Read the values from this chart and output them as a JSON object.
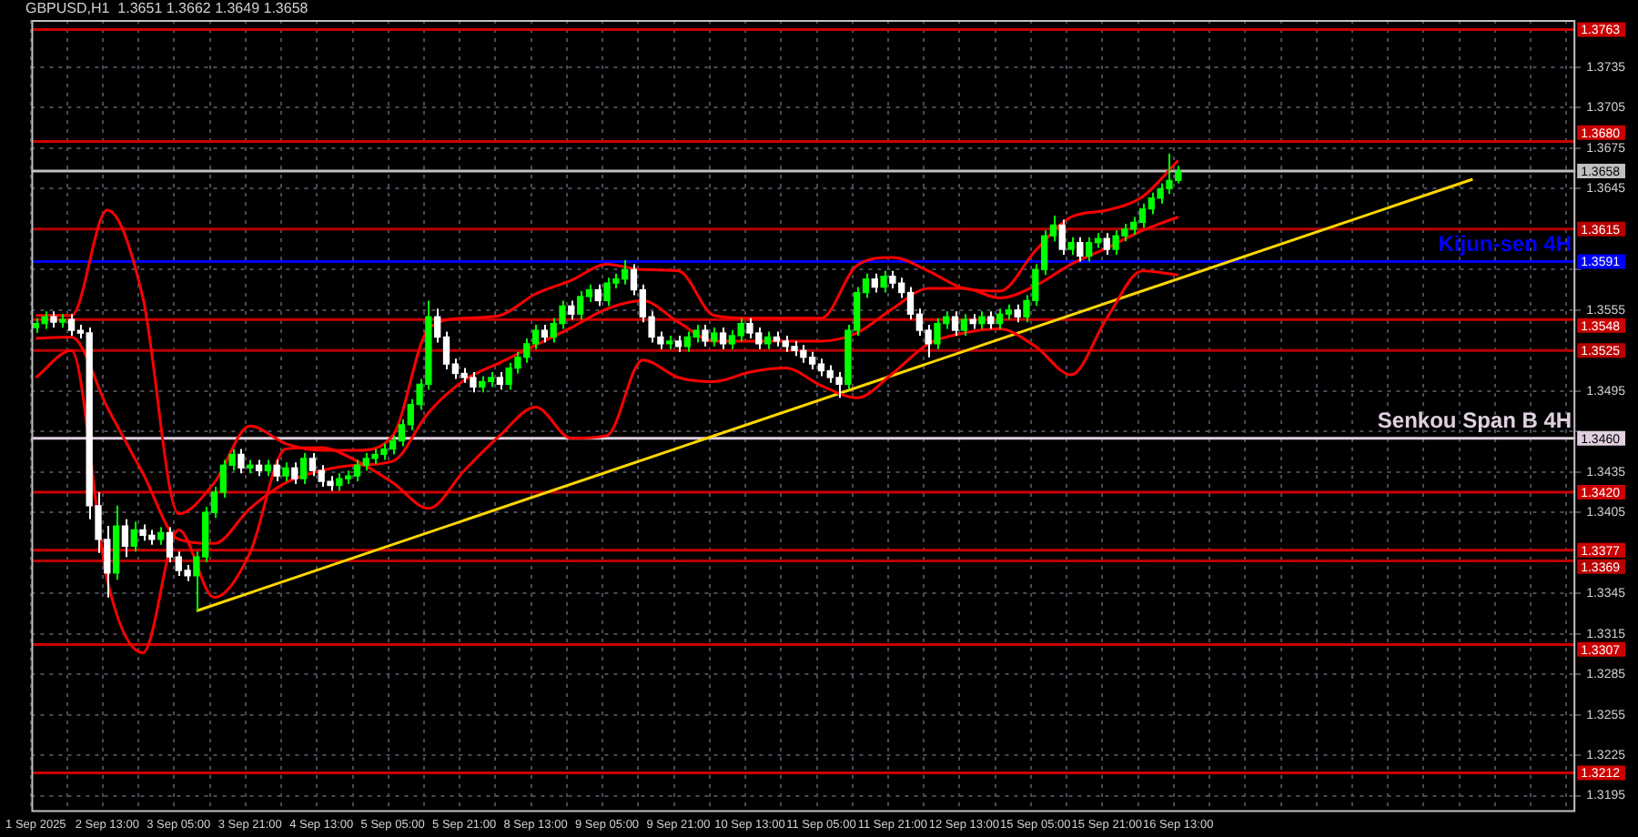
{
  "chart_data": {
    "type": "candlestick",
    "title": "GBPUSD,H1  1.3651 1.3662 1.3649 1.3658",
    "categories": [
      "1 Sep 2025",
      null,
      null,
      null,
      null,
      null,
      null,
      null,
      "2 Sep 13:00",
      null,
      null,
      null,
      null,
      null,
      null,
      null,
      "3 Sep 05:00",
      null,
      null,
      null,
      null,
      null,
      null,
      null,
      "3 Sep 21:00",
      null,
      null,
      null,
      null,
      null,
      null,
      null,
      "4 Sep 13:00",
      null,
      null,
      null,
      null,
      null,
      null,
      null,
      "5 Sep 05:00",
      null,
      null,
      null,
      null,
      null,
      null,
      null,
      "5 Sep 21:00",
      null,
      null,
      null,
      null,
      null,
      null,
      null,
      "8 Sep 13:00",
      null,
      null,
      null,
      null,
      null,
      null,
      null,
      "9 Sep 05:00",
      null,
      null,
      null,
      null,
      null,
      null,
      null,
      "9 Sep 21:00",
      null,
      null,
      null,
      null,
      null,
      null,
      null,
      "10 Sep 13:00",
      null,
      null,
      null,
      null,
      null,
      null,
      null,
      "11 Sep 05:00",
      null,
      null,
      null,
      null,
      null,
      null,
      null,
      "11 Sep 21:00",
      null,
      null,
      null,
      null,
      null,
      null,
      null,
      "12 Sep 13:00",
      null,
      null,
      null,
      null,
      null,
      null,
      null,
      "15 Sep 05:00",
      null,
      null,
      null,
      null,
      null,
      null,
      null,
      "15 Sep 21:00",
      null,
      null,
      null,
      null,
      null,
      null,
      null,
      "16 Sep 13:00",
      null,
      null,
      null,
      null,
      null,
      null,
      null,
      null,
      null,
      null,
      null,
      null,
      null,
      null,
      null,
      null,
      null,
      null,
      null,
      null,
      null,
      null,
      null,
      null,
      null,
      null,
      null,
      null,
      null,
      null,
      null,
      null,
      null,
      null,
      null,
      null,
      null,
      null,
      null,
      null,
      null,
      null,
      null,
      null
    ],
    "series": [
      {
        "type": "line",
        "color": "#ff0000",
        "values": [
          1.3551,
          null,
          null,
          null,
          1.3551,
          null,
          null,
          null,
          1.3629,
          null,
          null,
          null,
          1.3564,
          null,
          null,
          null,
          1.3404,
          null,
          null,
          null,
          1.3427,
          null,
          null,
          null,
          1.3469,
          null,
          null,
          null,
          1.3456,
          null,
          null,
          null,
          1.3451,
          null,
          null,
          null,
          1.3451,
          null,
          null,
          null,
          1.3462,
          null,
          null,
          null,
          1.3541,
          null,
          null,
          null,
          1.3549,
          null,
          null,
          null,
          1.3551,
          null,
          null,
          null,
          1.3567,
          null,
          null,
          null,
          1.3577,
          null,
          null,
          null,
          1.3589,
          null,
          null,
          null,
          1.3585,
          null,
          null,
          null,
          1.3584,
          null,
          null,
          null,
          1.3551,
          null,
          null,
          null,
          1.3549,
          null,
          null,
          null,
          1.3549,
          null,
          null,
          null,
          1.3549,
          null,
          null,
          null,
          1.3588,
          null,
          null,
          null,
          1.3594,
          null,
          null,
          null,
          1.3584,
          null,
          null,
          null,
          1.3571,
          null,
          null,
          null,
          1.3569,
          null,
          null,
          null,
          1.3599,
          null,
          null,
          null,
          1.3624,
          null,
          null,
          null,
          1.3629,
          null,
          null,
          null,
          1.3639,
          null,
          null,
          null,
          1.3666,
          null,
          null,
          null,
          null,
          null,
          null,
          null,
          null,
          null,
          null,
          null,
          null,
          null,
          null,
          null,
          null,
          null,
          null,
          null,
          null,
          null,
          null,
          null,
          null,
          null,
          null,
          null,
          null,
          null,
          null,
          null,
          null,
          null,
          null,
          null,
          null,
          null,
          null,
          null,
          null,
          null,
          null,
          null,
          null
        ]
      },
      {
        "type": "line",
        "color": "#ff0000",
        "values": [
          1.3534,
          null,
          null,
          null,
          1.3535,
          null,
          null,
          null,
          1.3483,
          null,
          null,
          null,
          1.3434,
          null,
          null,
          null,
          1.3385,
          null,
          null,
          null,
          1.3382,
          null,
          null,
          null,
          1.3408,
          null,
          null,
          null,
          1.3427,
          null,
          null,
          null,
          1.3436,
          null,
          null,
          null,
          1.344,
          null,
          null,
          null,
          1.3443,
          null,
          null,
          null,
          1.3479,
          null,
          null,
          null,
          1.3503,
          null,
          null,
          null,
          1.3516,
          null,
          null,
          null,
          1.3529,
          null,
          null,
          null,
          1.3542,
          null,
          null,
          null,
          1.3556,
          null,
          null,
          null,
          1.3562,
          null,
          null,
          null,
          1.3546,
          null,
          null,
          null,
          1.3532,
          null,
          null,
          null,
          1.3532,
          null,
          null,
          null,
          1.3532,
          null,
          null,
          null,
          1.3532,
          null,
          null,
          null,
          1.3538,
          null,
          null,
          null,
          1.3556,
          null,
          null,
          null,
          1.3571,
          null,
          null,
          null,
          1.3571,
          null,
          null,
          null,
          1.3564,
          null,
          null,
          null,
          1.3573,
          null,
          null,
          null,
          1.3589,
          null,
          null,
          null,
          1.3601,
          null,
          null,
          null,
          1.3614,
          null,
          null,
          null,
          1.3624,
          null,
          null,
          null,
          null,
          null,
          null,
          null,
          null,
          null,
          null,
          null,
          null,
          null,
          null,
          null,
          null,
          null,
          null,
          null,
          null,
          null,
          null,
          null,
          null,
          null,
          null,
          null,
          null,
          null,
          null,
          null,
          null,
          null,
          null,
          null,
          null,
          null,
          null,
          null,
          null,
          null,
          null,
          null,
          null
        ]
      },
      {
        "type": "line",
        "color": "#ff0000",
        "values": [
          1.3505,
          null,
          null,
          null,
          1.3525,
          null,
          null,
          null,
          1.3355,
          null,
          null,
          null,
          1.3301,
          null,
          null,
          null,
          1.3392,
          null,
          null,
          null,
          1.3342,
          null,
          null,
          null,
          1.3375,
          null,
          null,
          null,
          1.3452,
          null,
          null,
          null,
          1.3453,
          null,
          null,
          null,
          1.3443,
          null,
          null,
          null,
          1.3427,
          null,
          null,
          null,
          1.3408,
          null,
          null,
          null,
          1.3436,
          null,
          null,
          null,
          1.3462,
          null,
          null,
          null,
          1.3483,
          null,
          null,
          null,
          1.346,
          null,
          null,
          null,
          1.3462,
          null,
          null,
          null,
          1.3518,
          null,
          null,
          null,
          1.3505,
          null,
          null,
          null,
          1.3502,
          null,
          null,
          null,
          1.3509,
          null,
          null,
          null,
          1.3512,
          null,
          null,
          null,
          1.3499,
          null,
          null,
          null,
          1.349,
          null,
          null,
          null,
          1.3508,
          null,
          null,
          null,
          1.353,
          null,
          null,
          null,
          1.3538,
          null,
          null,
          null,
          1.3541,
          null,
          null,
          null,
          1.3528,
          null,
          null,
          null,
          1.3507,
          null,
          null,
          null,
          1.3549,
          null,
          null,
          null,
          1.3584,
          null,
          null,
          null,
          1.3581,
          null,
          null,
          null,
          null,
          null,
          null,
          null,
          null,
          null,
          null,
          null,
          null,
          null,
          null,
          null,
          null,
          null,
          null,
          null,
          null,
          null,
          null,
          null,
          null,
          null,
          null,
          null,
          null,
          null,
          null,
          null,
          null,
          null,
          null,
          null,
          null,
          null,
          null,
          null,
          null,
          null,
          null,
          null,
          null
        ]
      },
      {
        "type": "line",
        "color": "#ffd700",
        "values": [
          null,
          null,
          null,
          null,
          null,
          null,
          null,
          null,
          null,
          null,
          null,
          null,
          null,
          null,
          null,
          null,
          null,
          null,
          1.3332,
          null,
          null,
          null,
          null,
          null,
          null,
          null,
          null,
          null,
          null,
          null,
          null,
          null,
          null,
          null,
          null,
          null,
          null,
          null,
          null,
          null,
          null,
          null,
          null,
          null,
          null,
          null,
          null,
          null,
          null,
          null,
          null,
          null,
          null,
          null,
          null,
          null,
          null,
          null,
          null,
          null,
          null,
          null,
          null,
          null,
          null,
          null,
          null,
          null,
          null,
          null,
          null,
          null,
          null,
          null,
          null,
          null,
          null,
          null,
          null,
          null,
          null,
          null,
          null,
          null,
          null,
          null,
          null,
          null,
          null,
          null,
          null,
          null,
          null,
          null,
          null,
          null,
          null,
          null,
          null,
          null,
          null,
          null,
          null,
          null,
          null,
          null,
          null,
          null,
          null,
          null,
          null,
          null,
          null,
          null,
          null,
          null,
          null,
          null,
          null,
          null,
          null,
          null,
          null,
          null,
          null,
          null,
          null,
          null,
          null,
          null,
          null,
          null,
          null,
          null,
          null,
          null,
          null,
          null,
          null,
          null,
          null,
          null,
          null,
          null,
          null,
          null,
          null,
          null,
          null,
          null,
          null,
          null,
          null,
          null,
          null,
          null,
          null,
          null,
          null,
          null,
          null,
          1.3652,
          null,
          null,
          null,
          null,
          null,
          null,
          null,
          null,
          null,
          null,
          null
        ]
      },
      {
        "type": "candlestick",
        "colors": [
          "#00ff00",
          "#00ff00",
          "#ffffff",
          "#00ff00",
          "#ffffff",
          "#ffffff",
          "#ffffff",
          "#ffffff",
          "#ffffff",
          "#00ff00",
          "#ffffff",
          "#00ff00",
          "#ffffff",
          "#ffffff",
          "#00ff00",
          "#ffffff",
          "#ffffff",
          "#ffffff",
          "#00ff00",
          "#00ff00",
          "#00ff00",
          "#00ff00",
          "#00ff00",
          "#ffffff",
          "#00ff00",
          "#ffffff",
          "#00ff00",
          "#ffffff",
          "#00ff00",
          "#ffffff",
          "#00ff00",
          "#ffffff",
          "#ffffff",
          "#ffffff",
          "#00ff00",
          "#00ff00",
          "#00ff00",
          "#00ff00",
          "#00ff00",
          "#00ff00",
          "#00ff00",
          "#00ff00",
          "#00ff00",
          "#00ff00",
          "#00ff00",
          "#ffffff",
          "#ffffff",
          "#ffffff",
          "#ffffff",
          "#ffffff",
          "#00ff00",
          "#00ff00",
          "#ffffff",
          "#00ff00",
          "#00ff00",
          "#00ff00",
          "#00ff00",
          "#ffffff",
          "#00ff00",
          "#00ff00",
          "#ffffff",
          "#00ff00",
          "#00ff00",
          "#ffffff",
          "#00ff00",
          "#00ff00",
          "#00ff00",
          "#ffffff",
          "#ffffff",
          "#ffffff",
          "#ffffff",
          "#00ff00",
          "#ffffff",
          "#00ff00",
          "#00ff00",
          "#ffffff",
          "#00ff00",
          "#ffffff",
          "#00ff00",
          "#00ff00",
          "#ffffff",
          "#ffffff",
          "#00ff00",
          "#ffffff",
          "#ffffff",
          "#ffffff",
          "#ffffff",
          "#ffffff",
          "#ffffff",
          "#ffffff",
          "#ffffff",
          "#00ff00",
          "#00ff00",
          "#00ff00",
          "#ffffff",
          "#00ff00",
          "#ffffff",
          "#ffffff",
          "#ffffff",
          "#ffffff",
          "#ffffff",
          "#00ff00",
          "#00ff00",
          "#ffffff",
          "#00ff00",
          "#ffffff",
          "#00ff00",
          "#ffffff",
          "#00ff00",
          "#00ff00",
          "#ffffff",
          "#00ff00",
          "#00ff00",
          "#00ff00",
          "#00ff00",
          "#ffffff",
          "#00ff00",
          "#ffffff",
          "#00ff00",
          "#00ff00",
          "#ffffff",
          "#00ff00",
          "#00ff00",
          "#00ff00",
          "#00ff00",
          "#00ff00",
          "#00ff00",
          "#00ff00",
          "#00ff00",
          null,
          null,
          null,
          null,
          null,
          null,
          null,
          null,
          null,
          null,
          null,
          null,
          null,
          null,
          null,
          null,
          null,
          null,
          null,
          null,
          null,
          null,
          null,
          null,
          null,
          null,
          null,
          null,
          null,
          null,
          null,
          null,
          null,
          null,
          null,
          null,
          null,
          null,
          null,
          null,
          null,
          null,
          null,
          null
        ],
        "ohlc": [
          [
            1.3542,
            1.3549,
            1.3538,
            1.3545
          ],
          [
            1.3545,
            1.3554,
            1.3541,
            1.355
          ],
          [
            1.355,
            1.3554,
            1.3542,
            1.3546
          ],
          [
            1.3546,
            1.3552,
            1.3542,
            1.3548
          ],
          [
            1.3548,
            1.3552,
            1.3536,
            1.354
          ],
          [
            1.354,
            1.3544,
            1.3534,
            1.3538
          ],
          [
            1.3538,
            1.3542,
            1.34,
            1.341
          ],
          [
            1.341,
            1.342,
            1.3375,
            1.3385
          ],
          [
            1.3385,
            1.3395,
            1.3342,
            1.336
          ],
          [
            1.336,
            1.341,
            1.3355,
            1.3395
          ],
          [
            1.3395,
            1.34,
            1.3372,
            1.338
          ],
          [
            1.338,
            1.3398,
            1.3376,
            1.3392
          ],
          [
            1.3392,
            1.3396,
            1.3384,
            1.3388
          ],
          [
            1.3388,
            1.3392,
            1.3381,
            1.3385
          ],
          [
            1.3385,
            1.3394,
            1.3381,
            1.339
          ],
          [
            1.339,
            1.3394,
            1.3368,
            1.3372
          ],
          [
            1.3372,
            1.3376,
            1.3358,
            1.3362
          ],
          [
            1.3362,
            1.3366,
            1.3354,
            1.3358
          ],
          [
            1.3358,
            1.3376,
            1.3332,
            1.3372
          ],
          [
            1.3372,
            1.3409,
            1.3368,
            1.3405
          ],
          [
            1.3405,
            1.3424,
            1.3401,
            1.342
          ],
          [
            1.342,
            1.3444,
            1.3416,
            1.344
          ],
          [
            1.344,
            1.3452,
            1.3436,
            1.3448
          ],
          [
            1.3448,
            1.3452,
            1.3434,
            1.3438
          ],
          [
            1.3438,
            1.3444,
            1.3434,
            1.344
          ],
          [
            1.344,
            1.3444,
            1.3432,
            1.3436
          ],
          [
            1.3436,
            1.3444,
            1.3432,
            1.344
          ],
          [
            1.344,
            1.3444,
            1.3428,
            1.3432
          ],
          [
            1.3432,
            1.3442,
            1.3428,
            1.3438
          ],
          [
            1.3438,
            1.3442,
            1.3426,
            1.343
          ],
          [
            1.343,
            1.3449,
            1.3426,
            1.3445
          ],
          [
            1.3445,
            1.3449,
            1.3432,
            1.3436
          ],
          [
            1.3436,
            1.344,
            1.3424,
            1.3428
          ],
          [
            1.3428,
            1.3432,
            1.3421,
            1.3425
          ],
          [
            1.3425,
            1.3434,
            1.3421,
            1.343
          ],
          [
            1.343,
            1.3436,
            1.3426,
            1.3432
          ],
          [
            1.3432,
            1.3444,
            1.3428,
            1.344
          ],
          [
            1.344,
            1.3449,
            1.3436,
            1.3445
          ],
          [
            1.3445,
            1.3452,
            1.3441,
            1.3448
          ],
          [
            1.3448,
            1.3456,
            1.3444,
            1.3452
          ],
          [
            1.3452,
            1.3462,
            1.3448,
            1.3458
          ],
          [
            1.3458,
            1.3474,
            1.3454,
            1.347
          ],
          [
            1.347,
            1.3489,
            1.3466,
            1.3485
          ],
          [
            1.3485,
            1.3504,
            1.3481,
            1.35
          ],
          [
            1.35,
            1.3562,
            1.3496,
            1.355
          ],
          [
            1.355,
            1.3556,
            1.3531,
            1.3535
          ],
          [
            1.3535,
            1.3539,
            1.3511,
            1.3515
          ],
          [
            1.3515,
            1.3519,
            1.3504,
            1.3508
          ],
          [
            1.3508,
            1.3512,
            1.3501,
            1.3505
          ],
          [
            1.3505,
            1.3509,
            1.3494,
            1.3498
          ],
          [
            1.3498,
            1.3506,
            1.3494,
            1.3502
          ],
          [
            1.3502,
            1.3509,
            1.3498,
            1.3505
          ],
          [
            1.3505,
            1.3509,
            1.3496,
            1.35
          ],
          [
            1.35,
            1.3516,
            1.3496,
            1.3512
          ],
          [
            1.3512,
            1.3524,
            1.3508,
            1.352
          ],
          [
            1.352,
            1.3534,
            1.3516,
            1.353
          ],
          [
            1.353,
            1.3544,
            1.3526,
            1.354
          ],
          [
            1.354,
            1.3544,
            1.3531,
            1.3535
          ],
          [
            1.3535,
            1.3549,
            1.3531,
            1.3545
          ],
          [
            1.3545,
            1.3562,
            1.3541,
            1.3558
          ],
          [
            1.3558,
            1.3562,
            1.3548,
            1.3552
          ],
          [
            1.3552,
            1.3569,
            1.3548,
            1.3565
          ],
          [
            1.3565,
            1.3574,
            1.3561,
            1.357
          ],
          [
            1.357,
            1.3574,
            1.3558,
            1.3562
          ],
          [
            1.3562,
            1.3579,
            1.3558,
            1.3575
          ],
          [
            1.3575,
            1.3582,
            1.3571,
            1.3578
          ],
          [
            1.3578,
            1.3592,
            1.3574,
            1.3585
          ],
          [
            1.3585,
            1.3589,
            1.3566,
            1.357
          ],
          [
            1.357,
            1.3574,
            1.3546,
            1.355
          ],
          [
            1.355,
            1.3554,
            1.3531,
            1.3535
          ],
          [
            1.3535,
            1.3539,
            1.3526,
            1.353
          ],
          [
            1.353,
            1.3536,
            1.3526,
            1.3532
          ],
          [
            1.3532,
            1.3536,
            1.3524,
            1.3528
          ],
          [
            1.3528,
            1.3539,
            1.3524,
            1.3535
          ],
          [
            1.3535,
            1.3544,
            1.3531,
            1.354
          ],
          [
            1.354,
            1.3544,
            1.3528,
            1.3532
          ],
          [
            1.3532,
            1.3542,
            1.3528,
            1.3538
          ],
          [
            1.3538,
            1.3542,
            1.3526,
            1.353
          ],
          [
            1.353,
            1.354,
            1.3526,
            1.3536
          ],
          [
            1.3536,
            1.3549,
            1.3532,
            1.3545
          ],
          [
            1.3545,
            1.3549,
            1.3534,
            1.3538
          ],
          [
            1.3538,
            1.3542,
            1.3526,
            1.353
          ],
          [
            1.353,
            1.3539,
            1.3526,
            1.3535
          ],
          [
            1.3535,
            1.3539,
            1.3528,
            1.3532
          ],
          [
            1.3532,
            1.3536,
            1.3524,
            1.3528
          ],
          [
            1.3528,
            1.3532,
            1.3521,
            1.3525
          ],
          [
            1.3525,
            1.3529,
            1.3516,
            1.352
          ],
          [
            1.352,
            1.3524,
            1.3511,
            1.3515
          ],
          [
            1.3515,
            1.3519,
            1.3506,
            1.351
          ],
          [
            1.351,
            1.3514,
            1.3501,
            1.3505
          ],
          [
            1.3505,
            1.3509,
            1.349,
            1.35
          ],
          [
            1.35,
            1.3544,
            1.3496,
            1.354
          ],
          [
            1.354,
            1.3572,
            1.3536,
            1.3568
          ],
          [
            1.3568,
            1.3582,
            1.3564,
            1.3578
          ],
          [
            1.3578,
            1.3582,
            1.3568,
            1.3572
          ],
          [
            1.3572,
            1.3584,
            1.3568,
            1.358
          ],
          [
            1.358,
            1.3584,
            1.3571,
            1.3575
          ],
          [
            1.3575,
            1.3579,
            1.3564,
            1.3568
          ],
          [
            1.3568,
            1.3572,
            1.3548,
            1.3552
          ],
          [
            1.3552,
            1.3556,
            1.3536,
            1.354
          ],
          [
            1.354,
            1.3544,
            1.352,
            1.353
          ],
          [
            1.353,
            1.3549,
            1.3526,
            1.3545
          ],
          [
            1.3545,
            1.3554,
            1.3541,
            1.355
          ],
          [
            1.355,
            1.3554,
            1.3536,
            1.354
          ],
          [
            1.354,
            1.3552,
            1.3536,
            1.3548
          ],
          [
            1.3548,
            1.3552,
            1.3541,
            1.3545
          ],
          [
            1.3545,
            1.3554,
            1.3541,
            1.355
          ],
          [
            1.355,
            1.3554,
            1.3541,
            1.3545
          ],
          [
            1.3545,
            1.3556,
            1.3541,
            1.3552
          ],
          [
            1.3552,
            1.3559,
            1.3548,
            1.3555
          ],
          [
            1.3555,
            1.3559,
            1.3546,
            1.355
          ],
          [
            1.355,
            1.3566,
            1.3546,
            1.3562
          ],
          [
            1.3562,
            1.3589,
            1.3558,
            1.3585
          ],
          [
            1.3585,
            1.3614,
            1.3581,
            1.361
          ],
          [
            1.361,
            1.3625,
            1.3606,
            1.3618
          ],
          [
            1.3618,
            1.3622,
            1.3596,
            1.36
          ],
          [
            1.36,
            1.3609,
            1.3596,
            1.3605
          ],
          [
            1.3605,
            1.3609,
            1.3591,
            1.3595
          ],
          [
            1.3595,
            1.3609,
            1.3591,
            1.3605
          ],
          [
            1.3605,
            1.3612,
            1.3601,
            1.3608
          ],
          [
            1.3608,
            1.3612,
            1.3596,
            1.36
          ],
          [
            1.36,
            1.3614,
            1.3596,
            1.361
          ],
          [
            1.361,
            1.3619,
            1.3606,
            1.3615
          ],
          [
            1.3615,
            1.3624,
            1.3611,
            1.362
          ],
          [
            1.362,
            1.3634,
            1.3616,
            1.363
          ],
          [
            1.363,
            1.3642,
            1.3626,
            1.3638
          ],
          [
            1.3638,
            1.3649,
            1.3634,
            1.3645
          ],
          [
            1.3645,
            1.3671,
            1.3641,
            1.3651
          ],
          [
            1.3651,
            1.3662,
            1.3649,
            1.3658
          ],
          null,
          null,
          null,
          null,
          null,
          null,
          null,
          null,
          null,
          null,
          null,
          null,
          null,
          null,
          null,
          null,
          null,
          null,
          null,
          null,
          null,
          null,
          null,
          null,
          null,
          null,
          null,
          null,
          null,
          null,
          null,
          null,
          null,
          null,
          null,
          null,
          null,
          null,
          null,
          null,
          null,
          null,
          null,
          null
        ]
      }
    ],
    "ylim": [
      1.3183,
      1.377
    ],
    "yticks": [
      1.3195,
      1.3225,
      1.3255,
      1.3285,
      1.3315,
      1.3345,
      1.3405,
      1.3435,
      {
        "value": 1.3465,
        "label": null
      },
      1.3495,
      1.3555,
      {
        "value": 1.3585,
        "label": null
      },
      1.3645,
      1.3675,
      1.3705,
      1.3735
    ],
    "grid": true,
    "ref_lines": [
      {
        "axis": "y",
        "value": 1.3763,
        "label": "1.3763",
        "color": "#cc0000"
      },
      {
        "axis": "y",
        "value": 1.368,
        "label": "1.3680",
        "color": "#cc0000"
      },
      {
        "axis": "y",
        "value": 1.3658,
        "label": "1.3658",
        "color": "#c0c0c0"
      },
      {
        "axis": "y",
        "value": 1.3615,
        "label": "1.3615",
        "color": "#b80000"
      },
      {
        "axis": "y",
        "value": 1.3591,
        "label": "1.3591",
        "color": "#0000ff"
      },
      {
        "axis": "y",
        "value": 1.3548,
        "label": "1.3548",
        "color": "#cc0000"
      },
      {
        "axis": "y",
        "value": 1.3525,
        "label": "1.3525",
        "color": "#b80000"
      },
      {
        "axis": "y",
        "value": 1.346,
        "label": "1.3460",
        "color": "#e0d0e0"
      },
      {
        "axis": "y",
        "value": 1.342,
        "label": "1.3420",
        "color": "#cc0000"
      },
      {
        "axis": "y",
        "value": 1.3377,
        "label": "1.3377",
        "color": "#cc0000"
      },
      {
        "axis": "y",
        "value": 1.3369,
        "label": "1.3369",
        "color": "#b80000"
      },
      {
        "axis": "y",
        "value": 1.3307,
        "label": "1.3307",
        "color": "#cc0000"
      },
      {
        "axis": "y",
        "value": 1.3212,
        "label": "1.3212",
        "color": "#cc0000"
      }
    ],
    "annotations": [
      {
        "text": "Kijun-sen 4H",
        "y": 1.3591
      },
      {
        "text": "Senkou Span B 4H",
        "y": 1.346
      }
    ]
  }
}
